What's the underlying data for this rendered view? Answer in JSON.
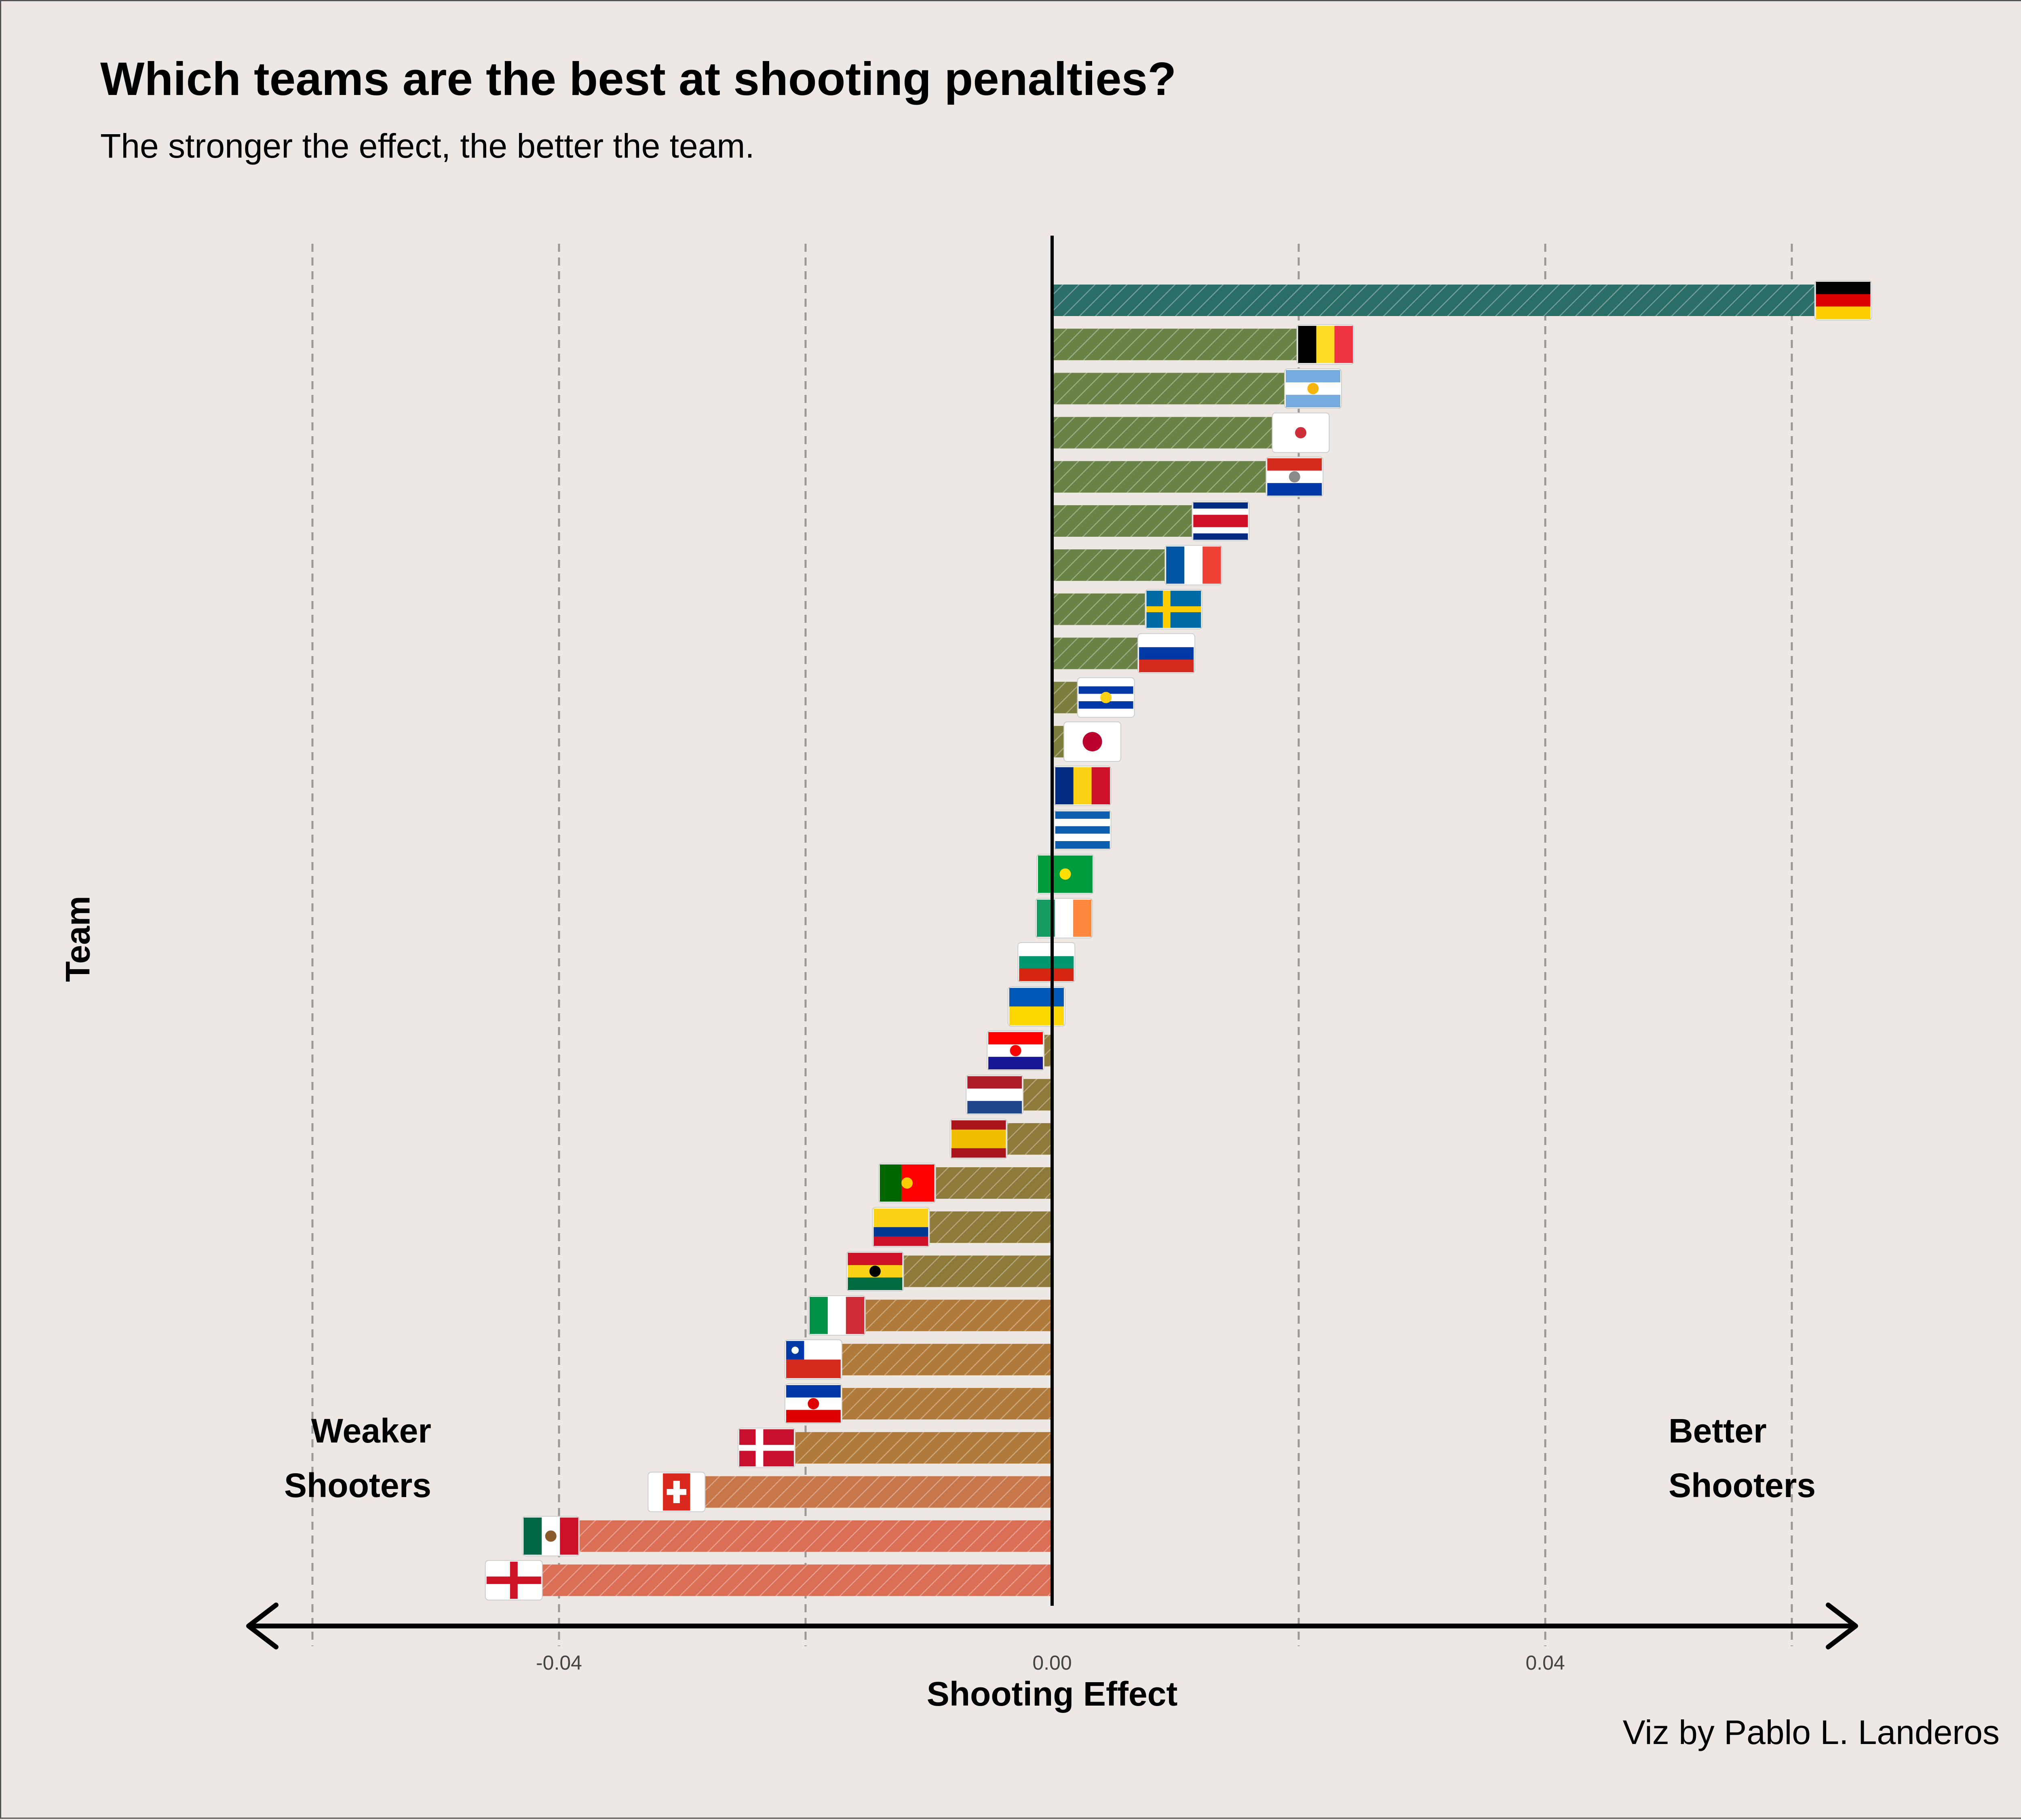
{
  "title": "Which teams are the best at shooting penalties?",
  "subtitle": "The stronger the effect, the better the team.",
  "caption": "Viz by Pablo L. Landeros",
  "annotations": {
    "left_line1": "Weaker",
    "left_line2": "Shooters",
    "right_line1": "Better",
    "right_line2": "Shooters"
  },
  "chart_data": {
    "type": "bar",
    "orientation": "horizontal",
    "title": "Which teams are the best at shooting penalties?",
    "subtitle": "The stronger the effect, the better the team.",
    "xlabel": "Shooting Effect",
    "ylabel": "Team",
    "xlim": [
      -0.066,
      0.066
    ],
    "xticks": [
      -0.04,
      0.0,
      0.04
    ],
    "xtick_labels": [
      "-0.04",
      "0.00",
      "0.04"
    ],
    "gridlines_x": [
      -0.06,
      -0.04,
      -0.02,
      0.0,
      0.02,
      0.04,
      0.06
    ],
    "grid": "vertical dashed",
    "categories": [
      "Germany",
      "Belgium",
      "Argentina",
      "South Korea",
      "Paraguay",
      "Costa Rica",
      "France",
      "Sweden",
      "Russia",
      "Uruguay",
      "Japan",
      "Romania",
      "Greece",
      "Brazil",
      "Ireland",
      "Bulgaria",
      "Ukraine",
      "Croatia",
      "Netherlands",
      "Spain",
      "Portugal",
      "Colombia",
      "Ghana",
      "Italy",
      "Chile",
      "Yugoslavia",
      "Denmark",
      "Switzerland",
      "Mexico",
      "England"
    ],
    "values": [
      0.064,
      0.022,
      0.021,
      0.02,
      0.0195,
      0.0135,
      0.0113,
      0.0097,
      0.0091,
      0.0042,
      0.0031,
      0.0023,
      0.0023,
      0.0009,
      0.0008,
      -0.0003,
      -0.0011,
      -0.0028,
      -0.0045,
      -0.0058,
      -0.0116,
      -0.0121,
      -0.0142,
      -0.0173,
      -0.0192,
      -0.0192,
      -0.023,
      -0.0303,
      -0.0405,
      -0.0435
    ],
    "flags": [
      {
        "team": "Germany",
        "icon": "germany-flag-icon",
        "stripes": "h",
        "colors": [
          "#000000",
          "#DD0000",
          "#FFCE00"
        ]
      },
      {
        "team": "Belgium",
        "icon": "belgium-flag-icon",
        "stripes": "v",
        "colors": [
          "#000000",
          "#FDDA24",
          "#EF3340"
        ]
      },
      {
        "team": "Argentina",
        "icon": "argentina-flag-icon",
        "stripes": "h",
        "colors": [
          "#74ACDF",
          "#FFFFFF",
          "#74ACDF"
        ],
        "emblem": "#F6B40E"
      },
      {
        "team": "South Korea",
        "icon": "south-korea-flag-icon",
        "stripes": "h",
        "colors": [
          "#FFFFFF"
        ],
        "emblem": "#CD2E3A"
      },
      {
        "team": "Paraguay",
        "icon": "paraguay-flag-icon",
        "stripes": "h",
        "colors": [
          "#D52B1E",
          "#FFFFFF",
          "#0038A8"
        ],
        "emblem": "#8A8A8A"
      },
      {
        "team": "Costa Rica",
        "icon": "costa-rica-flag-icon",
        "stripes": "h",
        "colors": [
          "#002B7F",
          "#FFFFFF",
          "#CE1126",
          "#CE1126",
          "#FFFFFF",
          "#002B7F"
        ]
      },
      {
        "team": "France",
        "icon": "france-flag-icon",
        "stripes": "v",
        "colors": [
          "#0055A4",
          "#FFFFFF",
          "#EF4135"
        ]
      },
      {
        "team": "Sweden",
        "icon": "sweden-flag-icon",
        "stripes": "cross",
        "colors": [
          "#006AA7",
          "#FECC00"
        ]
      },
      {
        "team": "Russia",
        "icon": "russia-flag-icon",
        "stripes": "h",
        "colors": [
          "#FFFFFF",
          "#0039A6",
          "#D52B1E"
        ]
      },
      {
        "team": "Uruguay",
        "icon": "uruguay-flag-icon",
        "stripes": "h",
        "colors": [
          "#FFFFFF",
          "#0038A8",
          "#FFFFFF",
          "#0038A8",
          "#FFFFFF"
        ],
        "emblem": "#FCD116"
      },
      {
        "team": "Japan",
        "icon": "japan-flag-icon",
        "stripes": "h",
        "colors": [
          "#FFFFFF"
        ],
        "emblem": "#BC002D"
      },
      {
        "team": "Romania",
        "icon": "romania-flag-icon",
        "stripes": "v",
        "colors": [
          "#002B7F",
          "#FCD116",
          "#CE1126"
        ]
      },
      {
        "team": "Greece",
        "icon": "greece-flag-icon",
        "stripes": "h",
        "colors": [
          "#0D5EAF",
          "#FFFFFF",
          "#0D5EAF",
          "#FFFFFF",
          "#0D5EAF"
        ]
      },
      {
        "team": "Brazil",
        "icon": "brazil-flag-icon",
        "stripes": "h",
        "colors": [
          "#009C3B"
        ],
        "emblem": "#FFDF00"
      },
      {
        "team": "Ireland",
        "icon": "ireland-flag-icon",
        "stripes": "v",
        "colors": [
          "#169B62",
          "#FFFFFF",
          "#FF883E"
        ]
      },
      {
        "team": "Bulgaria",
        "icon": "bulgaria-flag-icon",
        "stripes": "h",
        "colors": [
          "#FFFFFF",
          "#00966E",
          "#D62612"
        ]
      },
      {
        "team": "Ukraine",
        "icon": "ukraine-flag-icon",
        "stripes": "h",
        "colors": [
          "#0057B7",
          "#FFD700"
        ]
      },
      {
        "team": "Croatia",
        "icon": "croatia-flag-icon",
        "stripes": "h",
        "colors": [
          "#FF0000",
          "#FFFFFF",
          "#171796"
        ],
        "emblem": "#FF0000"
      },
      {
        "team": "Netherlands",
        "icon": "netherlands-flag-icon",
        "stripes": "h",
        "colors": [
          "#AE1C28",
          "#FFFFFF",
          "#21468B"
        ]
      },
      {
        "team": "Spain",
        "icon": "spain-flag-icon",
        "stripes": "h",
        "colors": [
          "#AA151B",
          "#F1BF00",
          "#F1BF00",
          "#AA151B"
        ]
      },
      {
        "team": "Portugal",
        "icon": "portugal-flag-icon",
        "stripes": "v2",
        "colors": [
          "#006600",
          "#FF0000"
        ],
        "emblem": "#FFCC00"
      },
      {
        "team": "Colombia",
        "icon": "colombia-flag-icon",
        "stripes": "h",
        "colors": [
          "#FCD116",
          "#FCD116",
          "#003893",
          "#CE1126"
        ]
      },
      {
        "team": "Ghana",
        "icon": "ghana-flag-icon",
        "stripes": "h",
        "colors": [
          "#CE1126",
          "#FCD116",
          "#006B3F"
        ],
        "emblem": "#000000"
      },
      {
        "team": "Italy",
        "icon": "italy-flag-icon",
        "stripes": "v",
        "colors": [
          "#009246",
          "#FFFFFF",
          "#CE2B37"
        ]
      },
      {
        "team": "Chile",
        "icon": "chile-flag-icon",
        "stripes": "chile",
        "colors": [
          "#FFFFFF",
          "#D52B1E",
          "#0039A6"
        ]
      },
      {
        "team": "Yugoslavia",
        "icon": "yugoslavia-flag-icon",
        "stripes": "h",
        "colors": [
          "#0038A8",
          "#FFFFFF",
          "#DE0000"
        ],
        "emblem": "#DE0000"
      },
      {
        "team": "Denmark",
        "icon": "denmark-flag-icon",
        "stripes": "cross",
        "colors": [
          "#C8102E",
          "#FFFFFF"
        ]
      },
      {
        "team": "Switzerland",
        "icon": "switzerland-flag-icon",
        "stripes": "swiss",
        "colors": [
          "#DA291C",
          "#FFFFFF"
        ]
      },
      {
        "team": "Mexico",
        "icon": "mexico-flag-icon",
        "stripes": "v",
        "colors": [
          "#006847",
          "#FFFFFF",
          "#CE1126"
        ],
        "emblem": "#8B5A2B"
      },
      {
        "team": "England",
        "icon": "england-flag-icon",
        "stripes": "george",
        "colors": [
          "#FFFFFF",
          "#CE1124"
        ]
      }
    ],
    "bar_colors": {
      "top": "#2A6E67",
      "positive_light": "#6A8246",
      "positive_dark": "#7C7E3E",
      "neutral": "#8E7A3A",
      "negative_mid": "#B07A3A",
      "negative_low": "#C8774A",
      "bottom": "#DA6F55"
    },
    "colors": {
      "background": "#EEE8E4",
      "axis": "#000000",
      "grid": "#999999",
      "hatch": "#FFFFFF"
    },
    "legend": "none"
  }
}
